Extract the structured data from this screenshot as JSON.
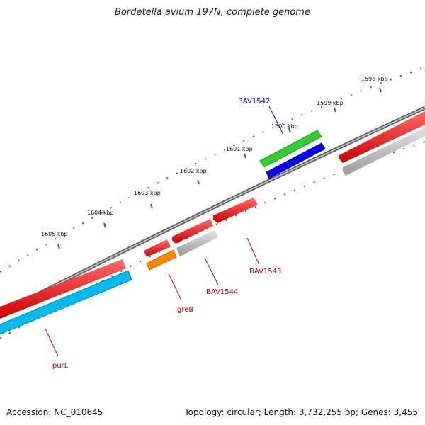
{
  "title": "Bordetella avium 197N, complete genome",
  "footer": {
    "accession": "Accession: NC_010645",
    "stats": "Topology: circular; Length: 3,732,255 bp; Genes: 3,455"
  },
  "colors": {
    "backbone": "#888888",
    "tick": "#1a7a1a",
    "red": "#ff0000",
    "gray": "#bbbbbb",
    "green": "#33cc33",
    "blue": "#0000ee",
    "orange": "#ff8800",
    "cyan": "#00bbee",
    "label_red": "#cc0000",
    "label_blue": "#0000cc"
  },
  "scale_labels": [
    "1598 kbp",
    "1599 kbp",
    "1600 kbp",
    "1601 kbp",
    "1602 kbp",
    "1603 kbp",
    "1604 kbp",
    "1605 kbp"
  ],
  "gene_labels": [
    "BAV1542",
    "BAV1543",
    "BAV1544",
    "greB",
    "purL"
  ]
}
